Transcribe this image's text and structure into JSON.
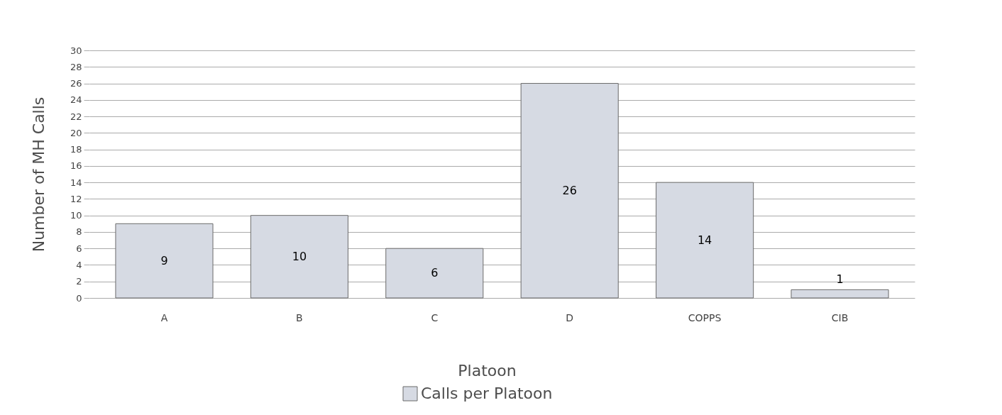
{
  "chart_data": {
    "type": "bar",
    "xlabel": "Platoon",
    "ylabel": "Number of MH Calls",
    "categories": [
      "A",
      "B",
      "C",
      "D",
      "COPPS",
      "CIB"
    ],
    "series": [
      {
        "name": "Calls per Platoon",
        "color": "#d6dae3",
        "values": [
          9,
          10,
          6,
          26,
          14,
          1
        ]
      }
    ],
    "ylim": [
      0,
      30
    ],
    "yticks": [
      0,
      2,
      4,
      6,
      8,
      10,
      12,
      14,
      16,
      18,
      20,
      22,
      24,
      26,
      28,
      30
    ],
    "grid": "y",
    "legend": "bottom",
    "data_labels": true
  }
}
